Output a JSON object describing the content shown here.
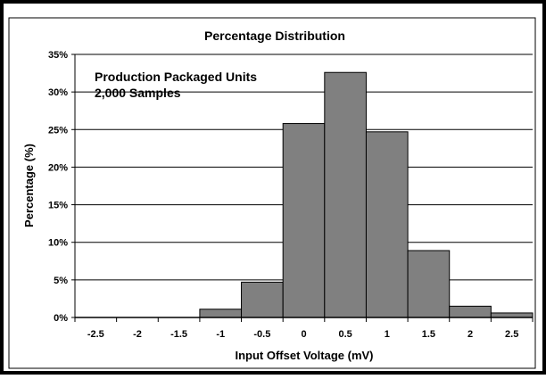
{
  "chart_data": {
    "type": "bar",
    "title": "Percentage Distribution",
    "xlabel": "Input Offset Voltage (mV)",
    "ylabel": "Percentage (%)",
    "annotations": [
      "Production Packaged Units",
      "2,000 Samples"
    ],
    "categories": [
      "-2.5",
      "-2",
      "-1.5",
      "-1",
      "-0.5",
      "0",
      "0.5",
      "1",
      "1.5",
      "2",
      "2.5"
    ],
    "values": [
      0,
      0,
      0,
      1.1,
      4.7,
      25.8,
      32.6,
      24.7,
      8.9,
      1.5,
      0.6
    ],
    "yticks": [
      "0%",
      "5%",
      "10%",
      "15%",
      "20%",
      "25%",
      "30%",
      "35%"
    ],
    "ylim": [
      0,
      35
    ],
    "grid": true,
    "bar_color": "#808080",
    "frame_color": "#000000"
  }
}
